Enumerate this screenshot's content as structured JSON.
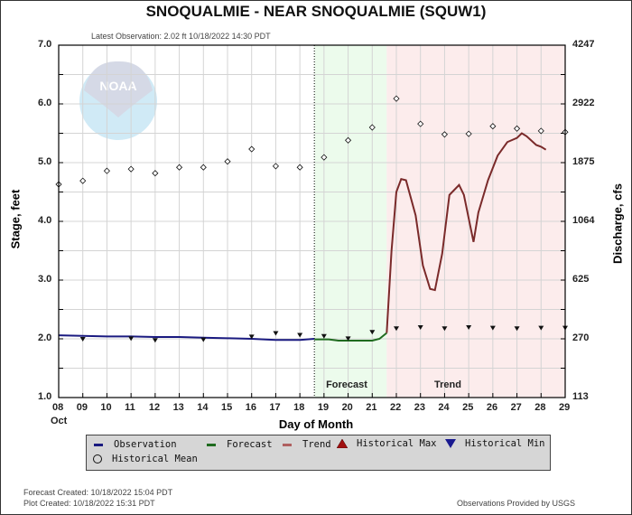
{
  "header": {
    "title": "SNOQUALMIE - NEAR SNOQUALMIE  (SQUW1)",
    "latest_observation": "Latest Observation: 2.02 ft 10/18/2022 14:30 PDT"
  },
  "axes": {
    "left_title": "Stage, feet",
    "right_title": "Discharge, cfs",
    "x_title": "Day of Month",
    "x_month": "Oct",
    "left_ticks": [
      "7.0",
      "6.0",
      "5.0",
      "4.0",
      "3.0",
      "2.0",
      "1.0"
    ],
    "right_ticks": [
      "4247",
      "2922",
      "1875",
      "1064",
      "625",
      "270",
      "113"
    ],
    "x_ticks": [
      "08",
      "09",
      "10",
      "11",
      "12",
      "13",
      "14",
      "15",
      "16",
      "17",
      "18",
      "19",
      "20",
      "21",
      "22",
      "23",
      "24",
      "25",
      "26",
      "27",
      "28",
      "29"
    ]
  },
  "regions": {
    "forecast_label": "Forecast",
    "trend_label": "Trend"
  },
  "legend": {
    "observation": "Observation",
    "forecast": "Forecast",
    "trend": "Trend",
    "hist_max": "Historical Max",
    "hist_min": "Historical Min",
    "hist_mean": "Historical Mean"
  },
  "footer": {
    "forecast_created": "Forecast Created: 10/18/2022 15:04 PDT",
    "plot_created": "Plot Created: 10/18/2022 15:31 PDT",
    "credit": "Observations Provided by USGS"
  },
  "colors": {
    "observation": "#1a1a80",
    "forecast": "#1f6b1f",
    "trend": "#7a2a2a",
    "hist_max": "#a01010",
    "hist_min": "#1a1a90",
    "forecast_bg": "#ecfbec",
    "trend_bg": "#fcecec"
  },
  "chart_data": {
    "type": "line",
    "title": "SNOQUALMIE - NEAR SNOQUALMIE  (SQUW1)",
    "subtitle": "Latest Observation: 2.02 ft 10/18/2022 14:30 PDT",
    "xlabel": "Day of Month (Oct)",
    "ylabel": "Stage, feet",
    "y2label": "Discharge, cfs",
    "xlim": [
      8,
      29
    ],
    "ylim": [
      1.0,
      7.0
    ],
    "y2_ticks": {
      "7.0": 4247,
      "6.0": 2922,
      "5.0": 1875,
      "4.0": 1064,
      "3.0": 625,
      "2.0": 270,
      "1.0": 113
    },
    "grid": true,
    "legend_position": "bottom",
    "forecast_start_day": 18.6,
    "trend_start_day": 21.6,
    "series": [
      {
        "name": "Observation",
        "x": [
          8,
          9,
          10,
          11,
          12,
          13,
          14,
          15,
          16,
          17,
          18,
          18.6
        ],
        "values": [
          2.06,
          2.05,
          2.04,
          2.04,
          2.03,
          2.03,
          2.02,
          2.01,
          2.0,
          1.98,
          1.98,
          2.0
        ]
      },
      {
        "name": "Forecast",
        "x": [
          18.6,
          19.2,
          19.6,
          20,
          20.6,
          21,
          21.3,
          21.6
        ],
        "values": [
          1.99,
          1.99,
          1.97,
          1.97,
          1.97,
          1.97,
          2.0,
          2.1
        ]
      },
      {
        "name": "Trend",
        "x": [
          21.6,
          21.8,
          22.0,
          22.2,
          22.4,
          22.8,
          23.1,
          23.4,
          23.6,
          23.9,
          24.2,
          24.6,
          24.8,
          25.2,
          25.4,
          25.8,
          26.2,
          26.6,
          27.0,
          27.2,
          27.4,
          27.8,
          28.0,
          28.2
        ],
        "values": [
          2.1,
          3.5,
          4.5,
          4.72,
          4.7,
          4.1,
          3.25,
          2.85,
          2.83,
          3.45,
          4.45,
          4.62,
          4.45,
          3.65,
          4.15,
          4.7,
          5.12,
          5.35,
          5.42,
          5.5,
          5.45,
          5.3,
          5.27,
          5.22
        ]
      },
      {
        "name": "Historical Mean",
        "x": [
          8,
          9,
          10,
          11,
          12,
          13,
          14,
          15,
          16,
          17,
          18,
          19,
          20,
          21,
          22,
          23,
          24,
          25,
          26,
          27,
          28,
          29
        ],
        "values": [
          4.63,
          4.69,
          4.86,
          4.89,
          4.82,
          4.92,
          4.92,
          5.02,
          5.23,
          4.94,
          4.92,
          5.09,
          5.38,
          5.6,
          6.09,
          5.66,
          5.48,
          5.49,
          5.62,
          5.58,
          5.54,
          5.52
        ]
      },
      {
        "name": "Historical Min",
        "x": [
          9,
          11,
          12,
          14,
          16,
          17,
          18,
          19,
          20,
          21,
          22,
          23,
          24,
          25,
          26,
          27,
          28,
          29
        ],
        "values": [
          2.0,
          2.01,
          1.98,
          1.99,
          2.04,
          2.1,
          2.07,
          2.05,
          2.01,
          2.12,
          2.18,
          2.2,
          2.18,
          2.2,
          2.19,
          2.18,
          2.19,
          2.19
        ]
      }
    ]
  }
}
